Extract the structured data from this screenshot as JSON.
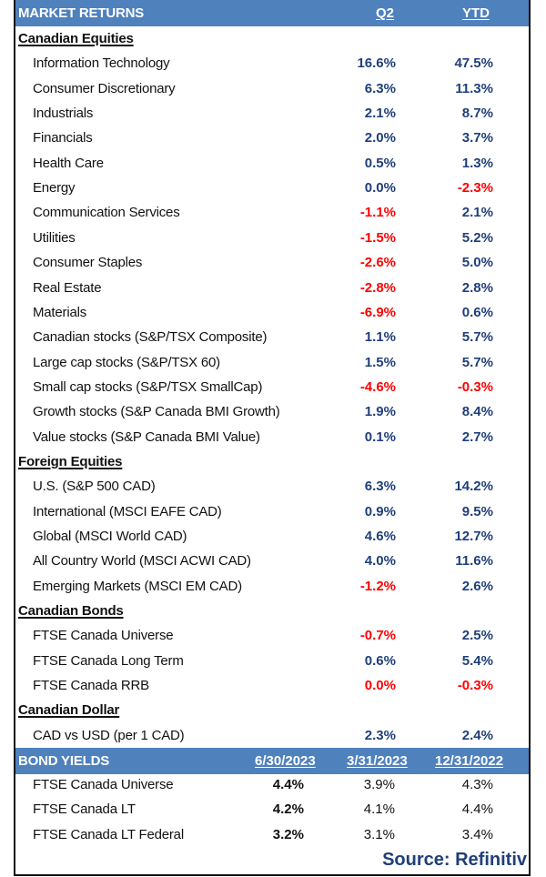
{
  "market_returns": {
    "title": "MARKET RETURNS",
    "col_q2": "Q2",
    "col_ytd": "YTD",
    "sections": [
      {
        "name": "Canadian Equities",
        "rows": [
          {
            "label": "Information Technology",
            "q2": "16.6%",
            "ytd": "47.5%",
            "q2_neg": false,
            "ytd_neg": false
          },
          {
            "label": "Consumer Discretionary",
            "q2": "6.3%",
            "ytd": "11.3%",
            "q2_neg": false,
            "ytd_neg": false
          },
          {
            "label": "Industrials",
            "q2": "2.1%",
            "ytd": "8.7%",
            "q2_neg": false,
            "ytd_neg": false
          },
          {
            "label": "Financials",
            "q2": "2.0%",
            "ytd": "3.7%",
            "q2_neg": false,
            "ytd_neg": false
          },
          {
            "label": "Health Care",
            "q2": "0.5%",
            "ytd": "1.3%",
            "q2_neg": false,
            "ytd_neg": false
          },
          {
            "label": "Energy",
            "q2": "0.0%",
            "ytd": "-2.3%",
            "q2_neg": false,
            "ytd_neg": true
          },
          {
            "label": "Communication Services",
            "q2": "-1.1%",
            "ytd": "2.1%",
            "q2_neg": true,
            "ytd_neg": false
          },
          {
            "label": "Utilities",
            "q2": "-1.5%",
            "ytd": "5.2%",
            "q2_neg": true,
            "ytd_neg": false
          },
          {
            "label": "Consumer Staples",
            "q2": "-2.6%",
            "ytd": "5.0%",
            "q2_neg": true,
            "ytd_neg": false
          },
          {
            "label": "Real Estate",
            "q2": "-2.8%",
            "ytd": "2.8%",
            "q2_neg": true,
            "ytd_neg": false
          },
          {
            "label": "Materials",
            "q2": "-6.9%",
            "ytd": "0.6%",
            "q2_neg": true,
            "ytd_neg": false
          },
          {
            "label": "Canadian stocks (S&P/TSX Composite)",
            "q2": "1.1%",
            "ytd": "5.7%",
            "q2_neg": false,
            "ytd_neg": false
          },
          {
            "label": "Large cap stocks (S&P/TSX 60)",
            "q2": "1.5%",
            "ytd": "5.7%",
            "q2_neg": false,
            "ytd_neg": false
          },
          {
            "label": "Small cap stocks (S&P/TSX SmallCap)",
            "q2": "-4.6%",
            "ytd": "-0.3%",
            "q2_neg": true,
            "ytd_neg": true
          },
          {
            "label": "Growth stocks (S&P Canada BMI Growth)",
            "q2": "1.9%",
            "ytd": "8.4%",
            "q2_neg": false,
            "ytd_neg": false
          },
          {
            "label": "Value stocks (S&P Canada BMI Value)",
            "q2": "0.1%",
            "ytd": "2.7%",
            "q2_neg": false,
            "ytd_neg": false
          }
        ]
      },
      {
        "name": "Foreign Equities",
        "rows": [
          {
            "label": "U.S. (S&P 500 CAD)",
            "q2": "6.3%",
            "ytd": "14.2%",
            "q2_neg": false,
            "ytd_neg": false
          },
          {
            "label": "International (MSCI EAFE CAD)",
            "q2": "0.9%",
            "ytd": "9.5%",
            "q2_neg": false,
            "ytd_neg": false
          },
          {
            "label": "Global (MSCI World CAD)",
            "q2": "4.6%",
            "ytd": "12.7%",
            "q2_neg": false,
            "ytd_neg": false
          },
          {
            "label": "All Country World (MSCI ACWI CAD)",
            "q2": "4.0%",
            "ytd": "11.6%",
            "q2_neg": false,
            "ytd_neg": false
          },
          {
            "label": "Emerging Markets (MSCI EM CAD)",
            "q2": "-1.2%",
            "ytd": "2.6%",
            "q2_neg": true,
            "ytd_neg": false
          }
        ]
      },
      {
        "name": "Canadian Bonds",
        "rows": [
          {
            "label": "FTSE Canada Universe",
            "q2": "-0.7%",
            "ytd": "2.5%",
            "q2_neg": true,
            "ytd_neg": false
          },
          {
            "label": "FTSE Canada Long Term",
            "q2": "0.6%",
            "ytd": "5.4%",
            "q2_neg": false,
            "ytd_neg": false
          },
          {
            "label": "FTSE Canada RRB",
            "q2": "0.0%",
            "ytd": "-0.3%",
            "q2_neg": true,
            "ytd_neg": true
          }
        ]
      },
      {
        "name": "Canadian Dollar",
        "rows": [
          {
            "label": "CAD vs USD (per 1 CAD)",
            "q2": "2.3%",
            "ytd": "2.4%",
            "q2_neg": false,
            "ytd_neg": false
          }
        ]
      }
    ]
  },
  "bond_yields": {
    "title": "BOND YIELDS",
    "columns": [
      "6/30/2023",
      "3/31/2023",
      "12/31/2022"
    ],
    "rows": [
      {
        "label": "FTSE Canada Universe",
        "values": [
          "4.4%",
          "3.9%",
          "4.3%"
        ]
      },
      {
        "label": "FTSE Canada LT",
        "values": [
          "4.2%",
          "4.1%",
          "4.4%"
        ]
      },
      {
        "label": "FTSE Canada LT Federal",
        "values": [
          "3.2%",
          "3.1%",
          "3.4%"
        ]
      }
    ]
  },
  "source": "Source: Refinitiv",
  "colors": {
    "header_band": "#4f81bd",
    "positive_value": "#1f3f7a",
    "negative_value": "#ff0000"
  }
}
